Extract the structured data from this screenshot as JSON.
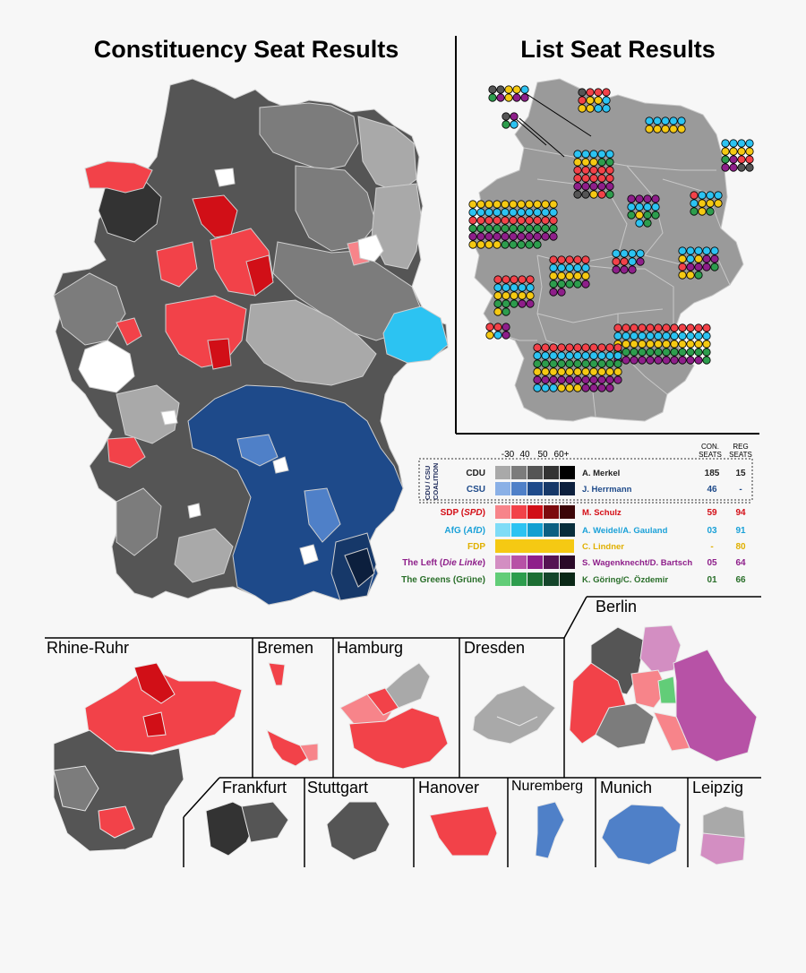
{
  "titles": {
    "constituency": "Constituency Seat Results",
    "list": "List Seat Results"
  },
  "legend": {
    "scale_labels": [
      "-30",
      "40",
      "50",
      "60+"
    ],
    "col_con": [
      "CON.",
      "SEATS"
    ],
    "col_reg": [
      "REG",
      "SEATS"
    ],
    "coalition_label": [
      "CDU / CSU",
      "COALITION"
    ],
    "parties": [
      {
        "name": "CDU",
        "leader": "A. Merkel",
        "con": "185",
        "reg": "15",
        "color": "#222222",
        "text_color": "#222222",
        "shades": [
          "#a9a9a9",
          "#7c7c7c",
          "#555555",
          "#333333",
          "#000000"
        ]
      },
      {
        "name": "CSU",
        "leader": "J. Herrmann",
        "con": "46",
        "reg": "-",
        "color": "#1e4a8a",
        "text_color": "#1e4a8a",
        "shades": [
          "#8ab0e6",
          "#4f80c8",
          "#1e4a8a",
          "#163869",
          "#0c1f3d"
        ]
      },
      {
        "name_parts": [
          "SDP (",
          "SPD",
          ")"
        ],
        "leader": "M. Schulz",
        "con": "59",
        "reg": "94",
        "color": "#d40f17",
        "text_color": "#d40f17",
        "shades": [
          "#f7848a",
          "#f24249",
          "#d10f17",
          "#7c0a0e",
          "#3c0507"
        ]
      },
      {
        "name_parts": [
          "AfG (",
          "AfD",
          ")"
        ],
        "leader": "A. Weidel/A. Gauland",
        "con": "03",
        "reg": "91",
        "color": "#1ba1d8",
        "text_color": "#1ba1d8",
        "shades": [
          "#7fdcf7",
          "#2cc3f2",
          "#129fd1",
          "#0c5f82",
          "#082e3c"
        ]
      },
      {
        "name": "FDP",
        "leader": "C. Lindner",
        "con": "-",
        "reg": "80",
        "color": "#e8b800",
        "text_color": "#e0b000",
        "shades": [
          "#f5c913"
        ]
      },
      {
        "name_parts": [
          "The Left (",
          "Die Linke",
          ")"
        ],
        "leader": "S. Wagenknecht/D. Bartsch",
        "con": "05",
        "reg": "64",
        "color": "#8e1f8a",
        "text_color": "#8e1f8a",
        "shades": [
          "#d38ec2",
          "#b752a6",
          "#8e1f8a",
          "#551452",
          "#2a0a29"
        ]
      },
      {
        "name": "The Greens (Grüne)",
        "leader": "K. Göring/C. Özdemir",
        "con": "01",
        "reg": "66",
        "color": "#2a6f2a",
        "text_color": "#2a6f2a",
        "shades": [
          "#62cd78",
          "#2d9d4d",
          "#1c6e33",
          "#14452a",
          "#0a2817"
        ]
      }
    ]
  },
  "insets": {
    "rhine_ruhr": "Rhine-Ruhr",
    "bremen": "Bremen",
    "hamburg": "Hamburg",
    "dresden": "Dresden",
    "berlin": "Berlin",
    "frankfurt": "Frankfurt",
    "stuttgart": "Stuttgart",
    "hanover": "Hanover",
    "nuremberg": "Nuremberg",
    "munich": "Munich",
    "leipzig": "Leipzig"
  },
  "colors": {
    "cdu": "#555555",
    "csu": "#1e4a8a",
    "spd": "#f24249",
    "afd": "#2cc3f2",
    "fdp": "#f5c913",
    "left": "#8e1f8a",
    "greens": "#2d9d4d",
    "list_map": "#9a9a9a"
  },
  "list_dots": [
    {
      "region": "schleswig-holstein",
      "rows": [
        [
          "cdu",
          "spd",
          "spd",
          "spd"
        ],
        [
          "spd",
          "fdp",
          "fdp",
          "afd"
        ],
        [
          "fdp",
          "fdp",
          "afd",
          "afd"
        ]
      ]
    },
    {
      "region": "hamburg",
      "rows": [
        [
          "cdu",
          "cdu",
          "fdp",
          "fdp",
          "afd"
        ],
        [
          "greens",
          "left",
          "fdp",
          "left",
          "left"
        ]
      ]
    },
    {
      "region": "bremen",
      "rows": [
        [
          "cdu",
          "left"
        ],
        [
          "greens",
          "afd"
        ]
      ]
    },
    {
      "region": "mecklenburg",
      "rows": [
        [
          "afd",
          "afd",
          "afd",
          "afd",
          "afd"
        ],
        [
          "fdp",
          "fdp",
          "fdp",
          "fdp",
          "fdp"
        ]
      ]
    },
    {
      "region": "brandenburg",
      "rows": [
        [
          "afd",
          "afd",
          "afd",
          "afd"
        ],
        [
          "fdp",
          "fdp",
          "fdp",
          "fdp"
        ],
        [
          "greens",
          "left",
          "spd",
          "spd"
        ],
        [
          "left",
          "left",
          "cdu",
          "cdu"
        ]
      ]
    },
    {
      "region": "lower-saxony",
      "rows": [
        [
          "afd",
          "afd",
          "afd",
          "afd",
          "afd"
        ],
        [
          "fdp",
          "fdp",
          "fdp",
          "greens",
          "greens"
        ],
        [
          "spd",
          "spd",
          "spd",
          "spd",
          "spd"
        ],
        [
          "spd",
          "spd",
          "spd",
          "spd",
          "spd"
        ],
        [
          "left",
          "left",
          "left",
          "left",
          "left"
        ],
        [
          "cdu",
          "cdu",
          "fdp",
          "spd",
          "greens"
        ]
      ]
    },
    {
      "region": "berlin",
      "rows": [
        [
          "spd",
          "afd",
          "afd",
          "afd"
        ],
        [
          "afd",
          "fdp",
          "fdp",
          "fdp"
        ],
        [
          "greens",
          "fdp",
          "greens",
          ""
        ]
      ]
    },
    {
      "region": "saxony-anhalt",
      "rows": [
        [
          "left",
          "left",
          "left",
          "left"
        ],
        [
          "afd",
          "afd",
          "afd",
          "afd"
        ],
        [
          "greens",
          "fdp",
          "greens",
          "greens"
        ],
        [
          "",
          "afd",
          "greens",
          ""
        ]
      ]
    },
    {
      "region": "nrw",
      "rows": [
        [
          "fdp",
          "fdp",
          "fdp",
          "fdp",
          "fdp",
          "fdp",
          "fdp",
          "fdp",
          "fdp",
          "fdp",
          "fdp"
        ],
        [
          "afd",
          "afd",
          "afd",
          "afd",
          "afd",
          "afd",
          "afd",
          "afd",
          "afd",
          "afd",
          "afd"
        ],
        [
          "spd",
          "spd",
          "spd",
          "spd",
          "spd",
          "spd",
          "spd",
          "spd",
          "spd",
          "spd",
          "spd"
        ],
        [
          "greens",
          "greens",
          "greens",
          "greens",
          "greens",
          "greens",
          "greens",
          "greens",
          "greens",
          "greens",
          "greens"
        ],
        [
          "left",
          "left",
          "left",
          "left",
          "left",
          "left",
          "left",
          "left",
          "left",
          "left",
          "left"
        ],
        [
          "fdp",
          "fdp",
          "fdp",
          "fdp",
          "greens",
          "greens",
          "greens",
          "greens",
          "greens",
          "",
          ""
        ]
      ]
    },
    {
      "region": "saxony",
      "rows": [
        [
          "afd",
          "afd",
          "afd",
          "afd",
          "afd"
        ],
        [
          "fdp",
          "afd",
          "fdp",
          "left",
          "left"
        ],
        [
          "spd",
          "left",
          "left",
          "left",
          "greens"
        ],
        [
          "fdp",
          "fdp",
          "greens",
          "",
          ""
        ]
      ]
    },
    {
      "region": "thuringia",
      "rows": [
        [
          "afd",
          "afd",
          "afd",
          "afd"
        ],
        [
          "spd",
          "spd",
          "afd",
          "left"
        ],
        [
          "left",
          "left",
          "left",
          ""
        ]
      ]
    },
    {
      "region": "hesse",
      "rows": [
        [
          "spd",
          "spd",
          "spd",
          "spd",
          "spd"
        ],
        [
          "afd",
          "afd",
          "afd",
          "afd",
          "afd"
        ],
        [
          "fdp",
          "fdp",
          "fdp",
          "fdp",
          "fdp"
        ],
        [
          "greens",
          "greens",
          "greens",
          "greens",
          "left"
        ],
        [
          "left",
          "left",
          "",
          "",
          ""
        ]
      ]
    },
    {
      "region": "rhineland",
      "rows": [
        [
          "spd",
          "spd",
          "spd",
          "spd",
          "spd"
        ],
        [
          "afd",
          "afd",
          "afd",
          "afd",
          "afd"
        ],
        [
          "fdp",
          "fdp",
          "fdp",
          "fdp",
          "fdp"
        ],
        [
          "greens",
          "greens",
          "greens",
          "left",
          "left"
        ],
        [
          "fdp",
          "greens",
          "",
          "",
          ""
        ]
      ]
    },
    {
      "region": "saarland",
      "rows": [
        [
          "spd",
          "spd",
          "left"
        ],
        [
          "fdp",
          "afd",
          "left"
        ]
      ]
    },
    {
      "region": "bavaria",
      "rows": [
        [
          "spd",
          "spd",
          "spd",
          "spd",
          "spd",
          "spd",
          "spd",
          "spd",
          "spd",
          "spd",
          "spd",
          "spd"
        ],
        [
          "afd",
          "afd",
          "afd",
          "afd",
          "afd",
          "afd",
          "afd",
          "afd",
          "afd",
          "afd",
          "afd",
          "afd"
        ],
        [
          "fdp",
          "fdp",
          "fdp",
          "fdp",
          "fdp",
          "fdp",
          "fdp",
          "fdp",
          "fdp",
          "fdp",
          "fdp",
          "fdp"
        ],
        [
          "greens",
          "greens",
          "greens",
          "greens",
          "greens",
          "greens",
          "greens",
          "greens",
          "greens",
          "greens",
          "greens",
          "greens"
        ],
        [
          "left",
          "left",
          "left",
          "left",
          "left",
          "left",
          "left",
          "left",
          "left",
          "left",
          "left",
          "greens"
        ]
      ]
    },
    {
      "region": "baden-wuerttemberg",
      "rows": [
        [
          "spd",
          "spd",
          "spd",
          "spd",
          "spd",
          "spd",
          "spd",
          "spd",
          "spd",
          "spd",
          "spd"
        ],
        [
          "afd",
          "afd",
          "afd",
          "afd",
          "afd",
          "afd",
          "afd",
          "afd",
          "afd",
          "afd",
          "afd"
        ],
        [
          "greens",
          "greens",
          "greens",
          "greens",
          "greens",
          "greens",
          "greens",
          "greens",
          "greens",
          "greens",
          "greens"
        ],
        [
          "fdp",
          "fdp",
          "fdp",
          "fdp",
          "fdp",
          "fdp",
          "fdp",
          "fdp",
          "fdp",
          "fdp",
          "fdp"
        ],
        [
          "left",
          "left",
          "left",
          "left",
          "left",
          "left",
          "left",
          "left",
          "left",
          "left",
          "left"
        ],
        [
          "afd",
          "afd",
          "afd",
          "fdp",
          "fdp",
          "fdp",
          "left",
          "left",
          "left",
          "left",
          ""
        ]
      ]
    }
  ]
}
